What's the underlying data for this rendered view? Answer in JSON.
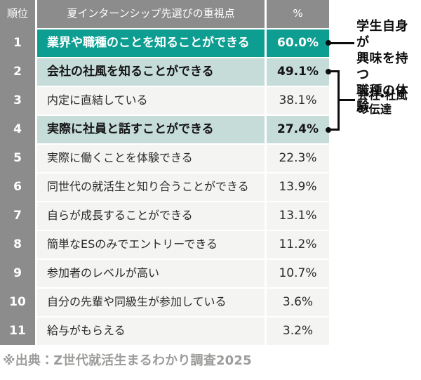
{
  "colors": {
    "header-gray": "#8C8C8C",
    "teal": "#0D9E91",
    "soft-teal": "#C5DCD8",
    "row-light": "#F4F4F2",
    "source-gray": "#9C9C9A",
    "annotation-black": "#0D0D0D"
  },
  "table": {
    "headers": {
      "rank": "順位",
      "topic": "夏インターンシップ先選びの重視点",
      "percent": "%"
    },
    "rows": [
      {
        "rank": "1",
        "topic": "業界や職種のことを知ることができる",
        "percent": "60.0%",
        "style": "strong"
      },
      {
        "rank": "2",
        "topic": "会社の社風を知ることができる",
        "percent": "49.1%",
        "style": "soft"
      },
      {
        "rank": "3",
        "topic": "内定に直結している",
        "percent": "38.1%",
        "style": "norm"
      },
      {
        "rank": "4",
        "topic": "実際に社員と話すことができる",
        "percent": "27.4%",
        "style": "soft"
      },
      {
        "rank": "5",
        "topic": "実際に働くことを体験できる",
        "percent": "22.3%",
        "style": "norm"
      },
      {
        "rank": "6",
        "topic": "同世代の就活生と知り合うことができる",
        "percent": "13.9%",
        "style": "norm"
      },
      {
        "rank": "7",
        "topic": "自らが成長することができる",
        "percent": "13.1%",
        "style": "norm"
      },
      {
        "rank": "8",
        "topic": "簡単なESのみでエントリーできる",
        "percent": "11.2%",
        "style": "norm"
      },
      {
        "rank": "9",
        "topic": "参加者のレベルが高い",
        "percent": "10.7%",
        "style": "norm"
      },
      {
        "rank": "10",
        "topic": "自分の先輩や同級生が参加している",
        "percent": "3.6%",
        "style": "norm"
      },
      {
        "rank": "11",
        "topic": "給与がもらえる",
        "percent": "3.2%",
        "style": "norm"
      }
    ]
  },
  "annotations": [
    {
      "lines": [
        "学生自身が",
        "興味を持つ",
        "職種の体験"
      ],
      "connects_to_rank": 1
    },
    {
      "lines": [
        "会社・社風",
        "の伝達"
      ],
      "bracket_from_rank": 2,
      "bracket_to_rank": 4
    }
  ],
  "footer": {
    "source": "※出典：Z世代就活生まるわかり調査2025"
  },
  "chart_data": {
    "type": "table",
    "title": "夏インターンシップ先選びの重視点",
    "columns": [
      "順位",
      "夏インターンシップ先選びの重視点",
      "%"
    ],
    "categories": [
      "業界や職種のことを知ることができる",
      "会社の社風を知ることができる",
      "内定に直結している",
      "実際に社員と話すことができる",
      "実際に働くことを体験できる",
      "同世代の就活生と知り合うことができる",
      "自らが成長することができる",
      "簡単なESのみでエントリーできる",
      "参加者のレベルが高い",
      "自分の先輩や同級生が参加している",
      "給与がもらえる"
    ],
    "values": [
      60.0,
      49.1,
      38.1,
      27.4,
      22.3,
      13.9,
      13.1,
      11.2,
      10.7,
      3.6,
      3.2
    ],
    "highlighted_strong_ranks": [
      1
    ],
    "highlighted_soft_ranks": [
      2,
      4
    ],
    "annotations": [
      {
        "label": "学生自身が興味を持つ職種の体験",
        "target_rank": 1
      },
      {
        "label": "会社・社風の伝達",
        "from_rank": 2,
        "to_rank": 4
      }
    ],
    "source": "※出典：Z世代就活生まるわかり調査2025"
  }
}
